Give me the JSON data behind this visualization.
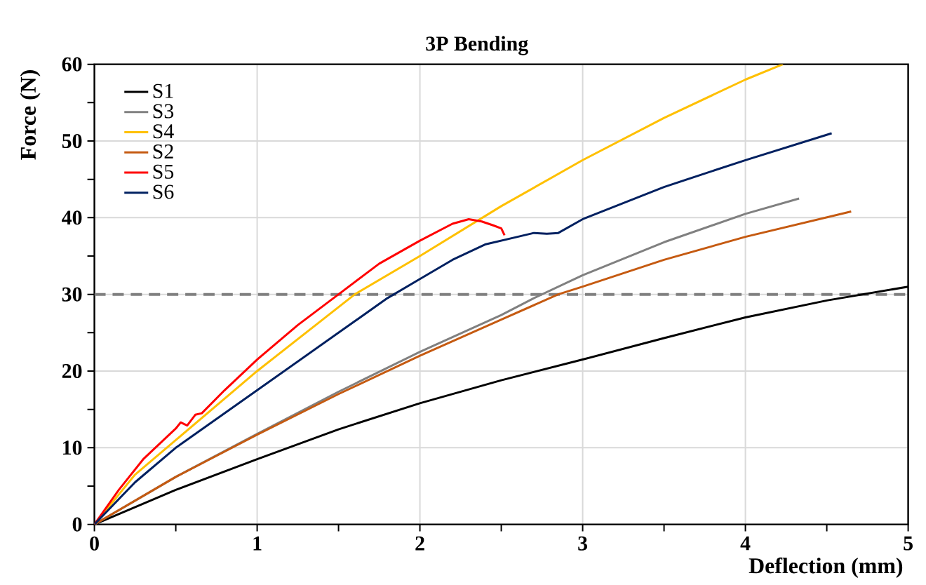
{
  "chart_data": {
    "type": "line",
    "title": "3P Bending",
    "xlabel": "Deflection (mm)",
    "ylabel": "Force (N)",
    "xlim": [
      0,
      5
    ],
    "ylim": [
      0,
      60
    ],
    "xticks": [
      0,
      1,
      2,
      3,
      4,
      5
    ],
    "yticks": [
      0,
      10,
      20,
      30,
      40,
      50,
      60
    ],
    "grid": true,
    "legend": "top left",
    "ref_lines": [
      {
        "axis": "y",
        "value": 30,
        "color": "#7f7f7f",
        "line_style": "dashed"
      }
    ],
    "series": [
      {
        "name": "S1",
        "color": "#000000",
        "x": [
          0,
          0.5,
          1,
          1.5,
          2,
          2.5,
          3,
          3.5,
          4,
          4.5,
          5
        ],
        "values": [
          0,
          4.5,
          8.5,
          12.4,
          15.8,
          18.8,
          21.5,
          24.3,
          27,
          29.2,
          31
        ]
      },
      {
        "name": "S3",
        "color": "#808080",
        "x": [
          0,
          0.5,
          1,
          1.5,
          2,
          2.5,
          2.7,
          3,
          3.5,
          4,
          4.33
        ],
        "values": [
          0,
          6.2,
          11.8,
          17.3,
          22.5,
          27.3,
          29.5,
          32.5,
          36.8,
          40.5,
          42.5
        ]
      },
      {
        "name": "S4",
        "color": "#ffc000",
        "x": [
          0,
          0.25,
          0.5,
          1,
          1.6,
          2,
          2.5,
          3,
          3.5,
          4,
          4.23
        ],
        "values": [
          0,
          6.5,
          11,
          20,
          30,
          35,
          41.5,
          47.5,
          53,
          58,
          60
        ]
      },
      {
        "name": "S2",
        "color": "#c55a11",
        "x": [
          0,
          0.5,
          1,
          1.5,
          2,
          2.5,
          2.85,
          3,
          3.5,
          4,
          4.65
        ],
        "values": [
          0,
          6.2,
          11.7,
          17,
          22,
          26.7,
          30,
          31,
          34.5,
          37.5,
          40.8
        ]
      },
      {
        "name": "S5",
        "color": "#ff0000",
        "x": [
          0,
          0.15,
          0.3,
          0.4,
          0.5,
          0.53,
          0.57,
          0.62,
          0.66,
          0.8,
          1,
          1.25,
          1.5,
          1.75,
          2,
          2.2,
          2.3,
          2.38,
          2.45,
          2.5,
          2.52
        ],
        "values": [
          0,
          4.5,
          8.5,
          10.5,
          12.5,
          13.3,
          12.9,
          14.3,
          14.5,
          17.5,
          21.5,
          26,
          30,
          34,
          37,
          39.2,
          39.8,
          39.5,
          39,
          38.6,
          37.7
        ]
      },
      {
        "name": "S6",
        "color": "#002060",
        "x": [
          0,
          0.25,
          0.5,
          1,
          1.5,
          1.8,
          2,
          2.2,
          2.4,
          2.6,
          2.7,
          2.78,
          2.85,
          3,
          3.5,
          4,
          4.53
        ],
        "values": [
          0,
          5.5,
          10,
          17.5,
          25,
          29.5,
          32,
          34.5,
          36.5,
          37.5,
          38,
          37.9,
          38,
          39.8,
          44,
          47.5,
          51
        ]
      }
    ]
  }
}
